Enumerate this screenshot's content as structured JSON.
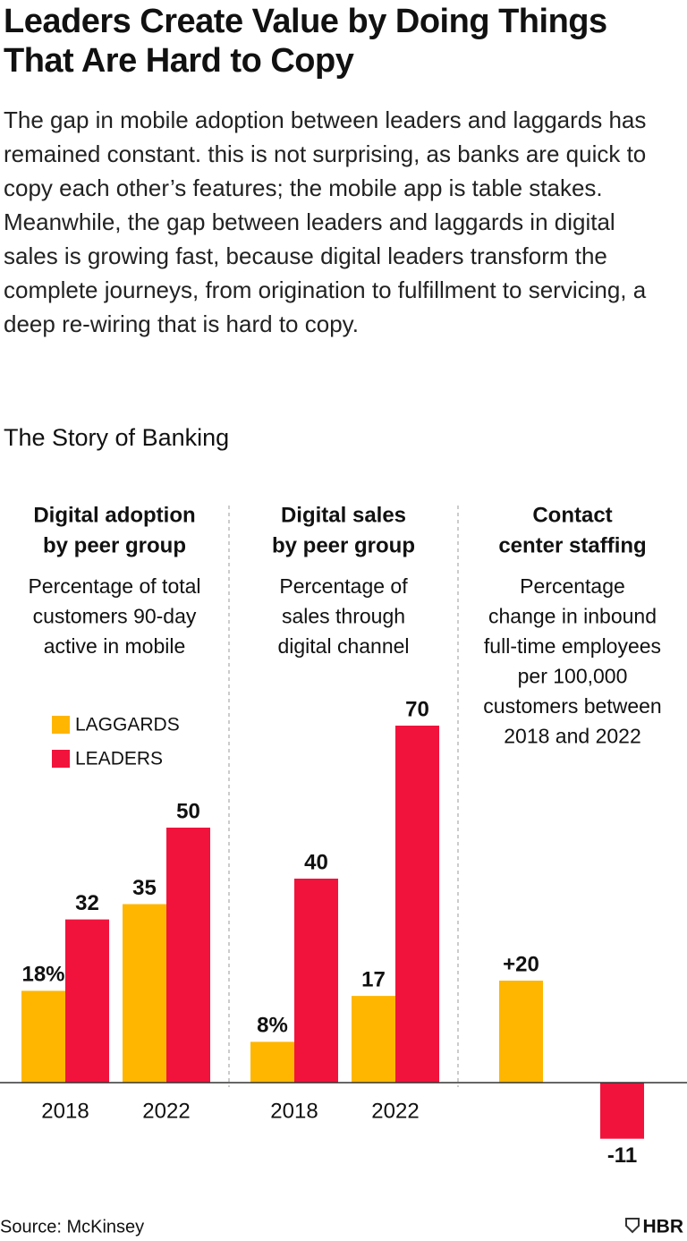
{
  "title": "Leaders Create Value by Doing Things That Are Hard to Copy",
  "description": "The gap in mobile adoption between leaders and laggards has remained constant. this is not surprising, as banks are quick to copy each other’s features; the mobile app is table stakes. Meanwhile, the gap between leaders and laggards in digital sales is growing fast, because digital leaders transform the complete journeys, from origination to fulfillment to servicing, a deep re-wiring that is hard to copy.",
  "chart_title": "The Story of Banking",
  "source": "Source: McKinsey",
  "logo": "HBR",
  "chart_data": [
    {
      "type": "bar",
      "title": [
        "Digital adoption",
        "by peer group"
      ],
      "subtitle": [
        "Percentage of total",
        "customers 90-day",
        "active in mobile"
      ],
      "categories": [
        "2018",
        "2022"
      ],
      "series": [
        {
          "name": "LAGGARDS",
          "color": "#FFB600",
          "values": [
            18,
            35
          ],
          "value_labels": [
            "18%",
            "35"
          ]
        },
        {
          "name": "LEADERS",
          "color": "#F2133C",
          "values": [
            32,
            50
          ]
        }
      ],
      "ylim": [
        -15,
        75
      ],
      "legend": "upper left"
    },
    {
      "type": "bar",
      "title": [
        "Digital sales",
        "by peer group"
      ],
      "subtitle": [
        "Percentage of",
        "sales through",
        "digital channel"
      ],
      "categories": [
        "2018",
        "2022"
      ],
      "series": [
        {
          "color": "#FFB600",
          "values": [
            8,
            17
          ],
          "value_labels": [
            "8%",
            "17"
          ]
        },
        {
          "color": "#F2133C",
          "values": [
            40,
            70
          ]
        }
      ],
      "ylim": [
        -15,
        75
      ]
    },
    {
      "type": "bar",
      "title": [
        "Contact",
        "center staffing"
      ],
      "subtitle": [
        "Percentage",
        "change in inbound",
        "full-time employees",
        "per 100,000",
        "customers between",
        "2018 and 2022"
      ],
      "categories": [
        null
      ],
      "series": [
        {
          "color": "#FFB600",
          "values": [
            20
          ],
          "value_labels": [
            "+20"
          ]
        },
        {
          "color": "#F2133C",
          "values": [
            -11
          ]
        }
      ],
      "ylim": [
        -15,
        75
      ]
    }
  ]
}
